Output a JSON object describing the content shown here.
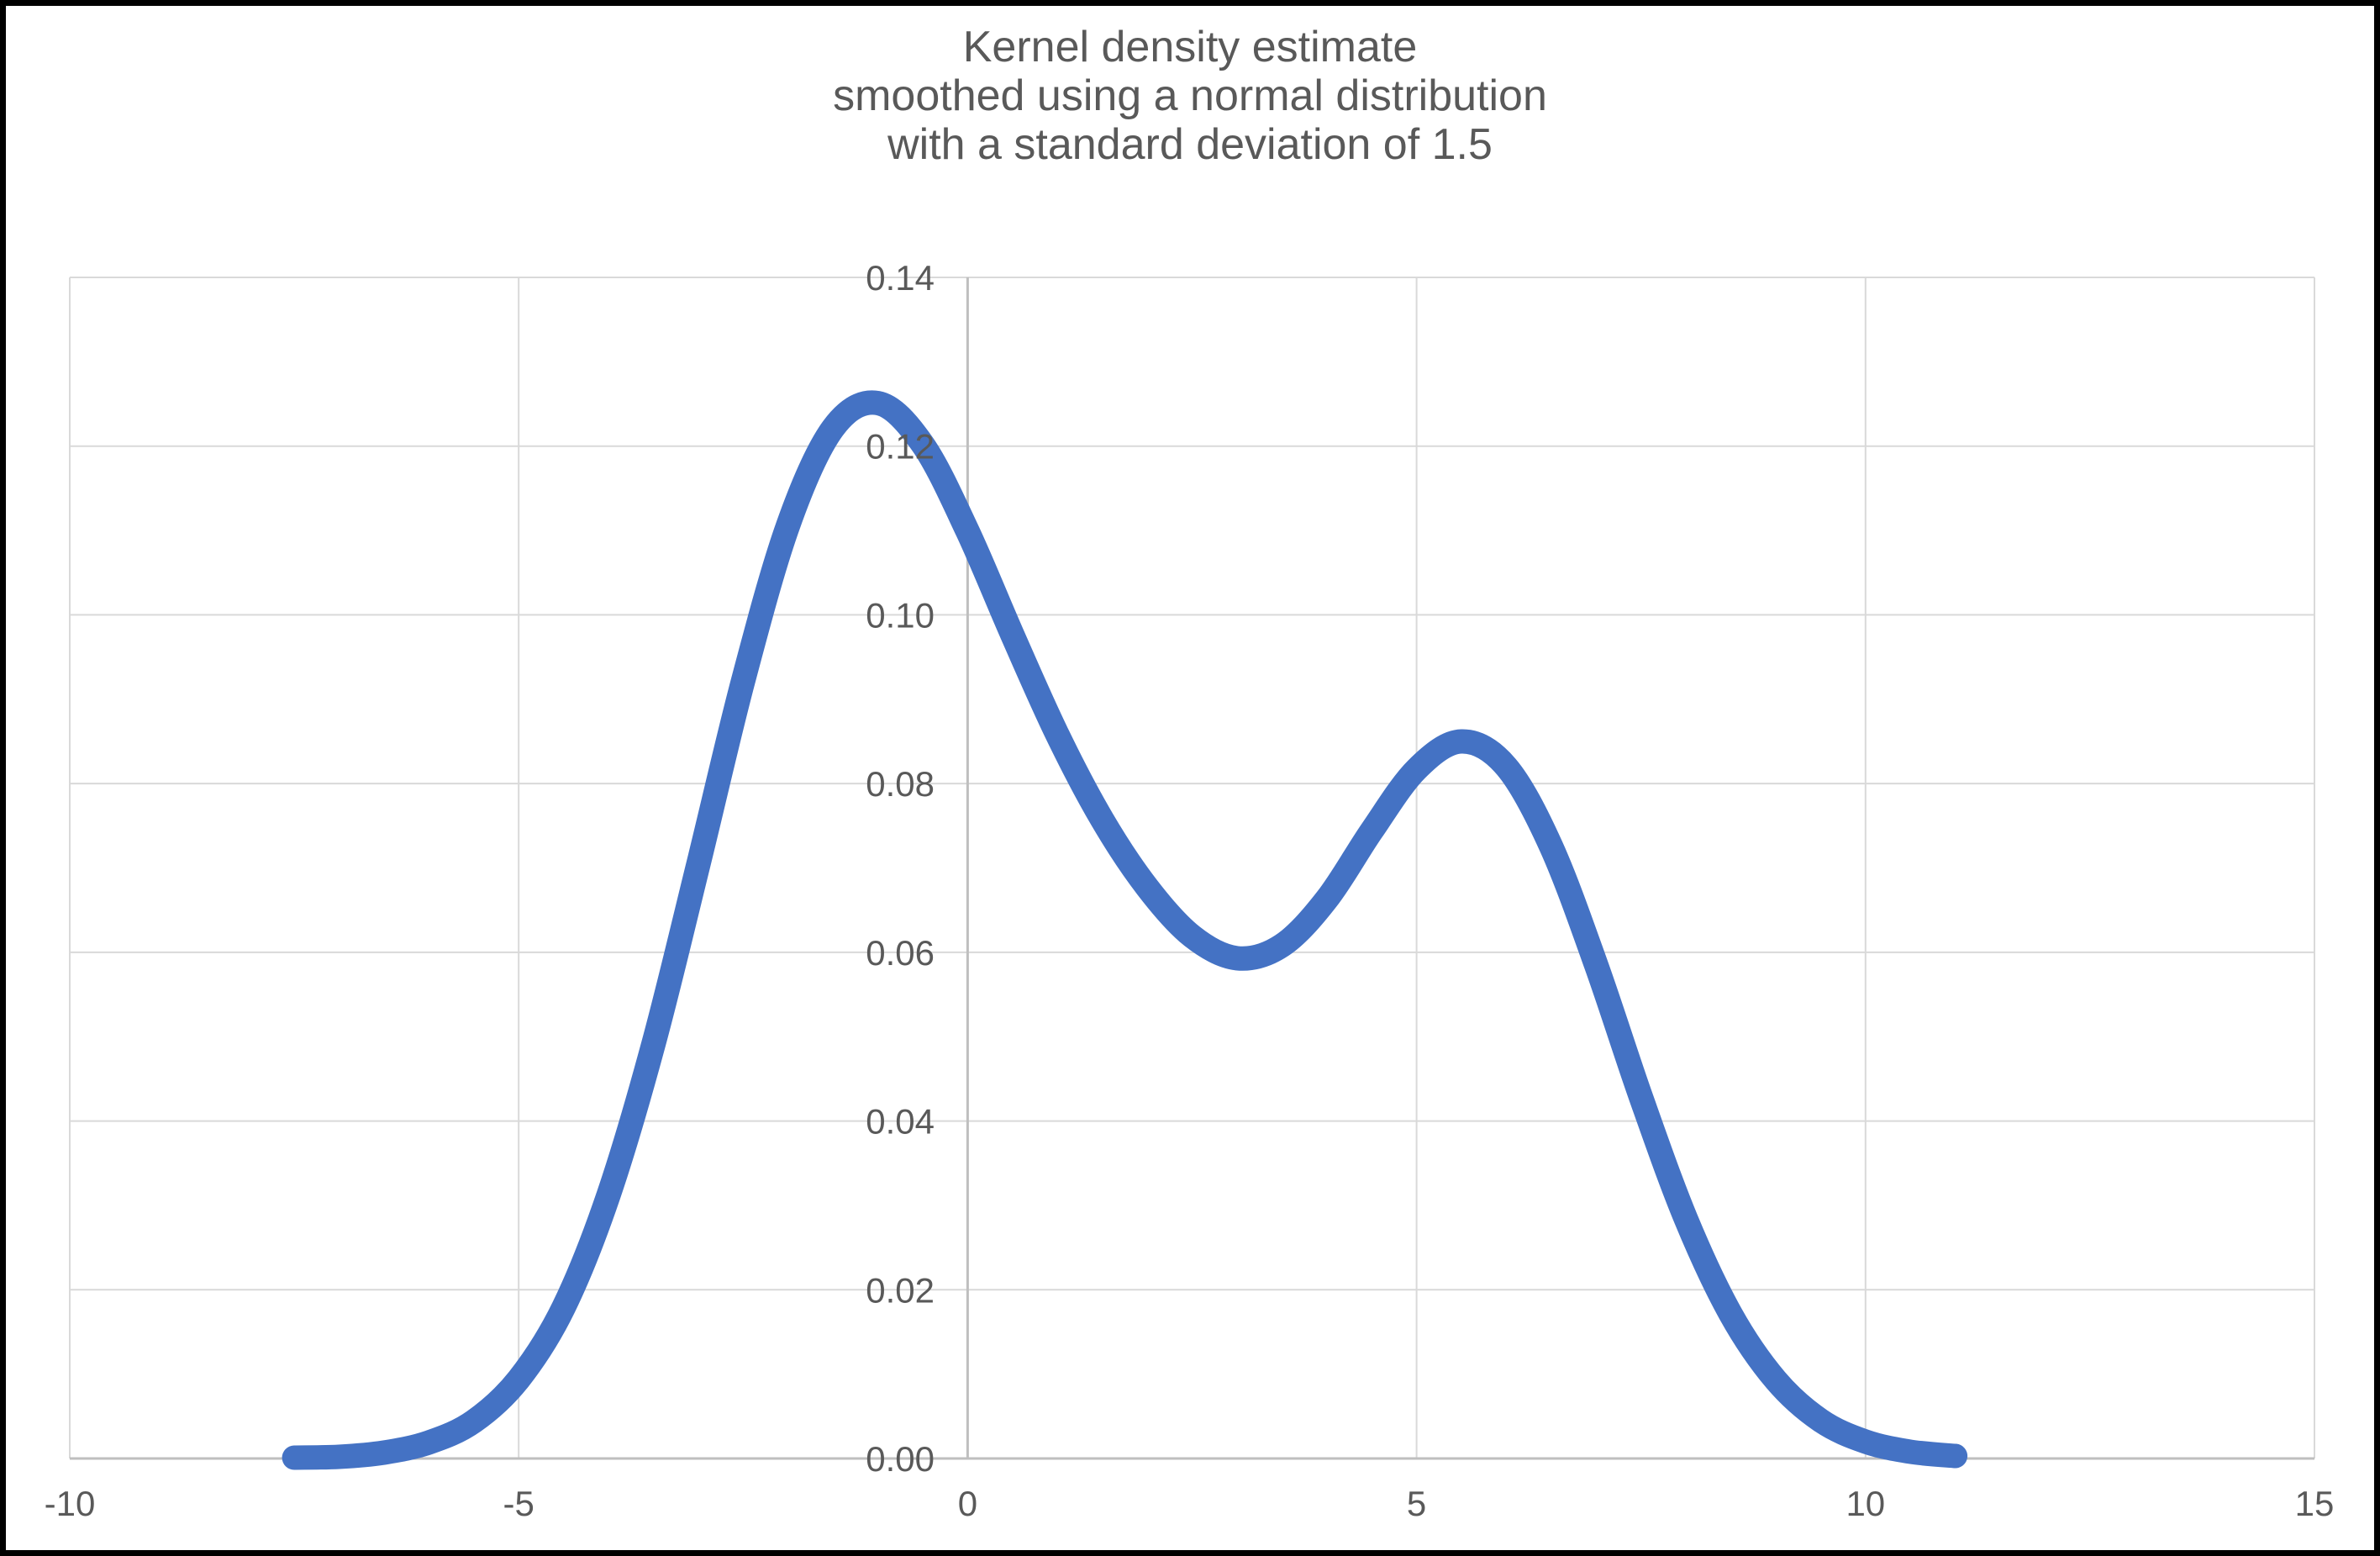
{
  "chart": {
    "title_lines": [
      "Kernel density estimate",
      "smoothed using a normal distribution",
      "with a standard deviation of 1.5"
    ]
  },
  "colors": {
    "curve": "#4472C4",
    "gridline": "#D9D9D9",
    "axis_line": "#BFBFBF",
    "text": "#595959",
    "background": "#FFFFFF",
    "frame": "#000000"
  },
  "chart_data": {
    "type": "line",
    "title": "Kernel density estimate smoothed using a normal distribution with a standard deviation of 1.5",
    "xlabel": "",
    "ylabel": "",
    "xlim": [
      -10,
      15
    ],
    "ylim": [
      0,
      0.14
    ],
    "x_ticks": [
      -10,
      -5,
      0,
      5,
      10,
      15
    ],
    "x_tick_labels": [
      "-10",
      "-5",
      "0",
      "5",
      "10",
      "15"
    ],
    "y_ticks": [
      0.0,
      0.02,
      0.04,
      0.06,
      0.08,
      0.1,
      0.12,
      0.14
    ],
    "y_tick_labels": [
      "0.00",
      "0.02",
      "0.04",
      "0.06",
      "0.08",
      "0.10",
      "0.12",
      "0.14"
    ],
    "grid": true,
    "legend_position": "none",
    "series": [
      {
        "name": "kernel-density-estimate",
        "x": [
          -7.5,
          -7.0,
          -6.5,
          -6.0,
          -5.5,
          -5.0,
          -4.5,
          -4.0,
          -3.5,
          -3.0,
          -2.5,
          -2.0,
          -1.5,
          -1.0,
          -0.5,
          0.0,
          0.5,
          1.0,
          1.5,
          2.0,
          2.5,
          3.0,
          3.5,
          4.0,
          4.5,
          5.0,
          5.5,
          6.0,
          6.5,
          7.0,
          7.5,
          8.0,
          8.5,
          9.0,
          9.5,
          10.0,
          10.5,
          11.0
        ],
        "y": [
          0.0001,
          0.0002,
          0.0007,
          0.0019,
          0.0044,
          0.0094,
          0.0179,
          0.0312,
          0.0491,
          0.0704,
          0.0922,
          0.1106,
          0.1221,
          0.1251,
          0.1202,
          0.1099,
          0.0976,
          0.0858,
          0.0757,
          0.0677,
          0.0619,
          0.0593,
          0.0608,
          0.0663,
          0.0744,
          0.0817,
          0.085,
          0.082,
          0.0725,
          0.0585,
          0.0428,
          0.0284,
          0.0171,
          0.0093,
          0.0045,
          0.002,
          0.0008,
          0.0003
        ]
      }
    ],
    "annotations": {
      "peak_1": {
        "x": -1.0,
        "y": 0.125
      },
      "valley": {
        "x": 3.0,
        "y": 0.059
      },
      "peak_2": {
        "x": 5.5,
        "y": 0.085
      }
    }
  }
}
